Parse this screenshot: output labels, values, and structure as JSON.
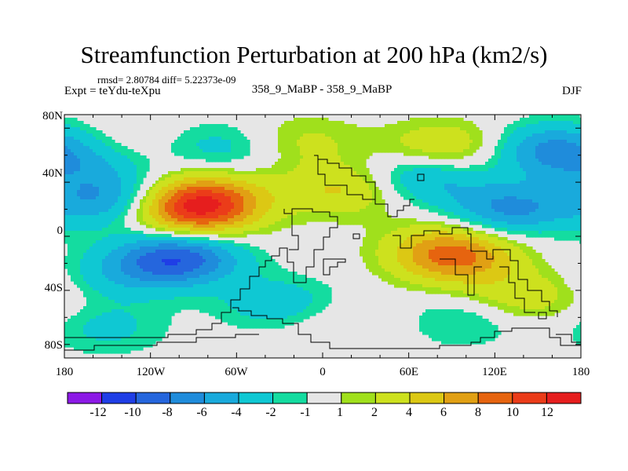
{
  "chart_data": {
    "type": "heatmap",
    "title": "Streamfunction Perturbation at 200 hPa (km2/s)",
    "stats_text": "rmsd= 2.80784 diff= 5.22373e-09",
    "experiment_label": "Expt = teYdu-teXpu",
    "center_label": "358_9_MaBP - 358_9_MaBP",
    "season": "DJF",
    "x_axis": {
      "range": [
        -180,
        180
      ],
      "ticks": [
        "180",
        "120W",
        "60W",
        "0",
        "60E",
        "120E",
        "180"
      ]
    },
    "y_axis": {
      "range": [
        -90,
        90
      ],
      "ticks": [
        "80N",
        "40N",
        "0",
        "40S",
        "80S"
      ]
    },
    "colorbar": {
      "labels": [
        "-12",
        "-10",
        "-8",
        "-6",
        "-4",
        "-2",
        "-1",
        "1",
        "2",
        "4",
        "6",
        "8",
        "10",
        "12"
      ],
      "colors": [
        "#8c19e6",
        "#1f3ee6",
        "#2566dd",
        "#1f8cdb",
        "#19aadc",
        "#0fc8d3",
        "#14dca0",
        "#e6e6e6",
        "#a0e01c",
        "#cde11e",
        "#dcc814",
        "#e1a014",
        "#e6640f",
        "#eb3c19",
        "#e61e1e"
      ]
    },
    "field_features": [
      {
        "lon": -90,
        "lat": 19,
        "value": 10.2
      },
      {
        "lon": -80,
        "lat": 30,
        "value": 5
      },
      {
        "lon": -100,
        "lat": -16,
        "value": -9.5
      },
      {
        "lon": -140,
        "lat": -28,
        "value": -3
      },
      {
        "lon": -150,
        "lat": 27,
        "value": -6
      },
      {
        "lon": -160,
        "lat": 53,
        "value": -3
      },
      {
        "lon": -70,
        "lat": 65,
        "value": -3
      },
      {
        "lon": -140,
        "lat": 67,
        "value": 1.5
      },
      {
        "lon": -15,
        "lat": 70,
        "value": 2.5
      },
      {
        "lon": 15,
        "lat": 35,
        "value": 4.5
      },
      {
        "lon": 70,
        "lat": 44,
        "value": -5
      },
      {
        "lon": 85,
        "lat": 65,
        "value": 4.5
      },
      {
        "lon": 130,
        "lat": 20,
        "value": -6.5
      },
      {
        "lon": 160,
        "lat": 64,
        "value": -6.5
      },
      {
        "lon": 92,
        "lat": -16,
        "value": 7.5
      },
      {
        "lon": 85,
        "lat": -5,
        "value": 2.5
      },
      {
        "lon": 140,
        "lat": -45,
        "value": 3.5
      },
      {
        "lon": -30,
        "lat": -50,
        "value": -3.5
      },
      {
        "lon": -150,
        "lat": -68,
        "value": -2.5
      },
      {
        "lon": 100,
        "lat": -62,
        "value": -2.5
      },
      {
        "lon": 10,
        "lat": -65,
        "value": 1.5
      }
    ]
  }
}
